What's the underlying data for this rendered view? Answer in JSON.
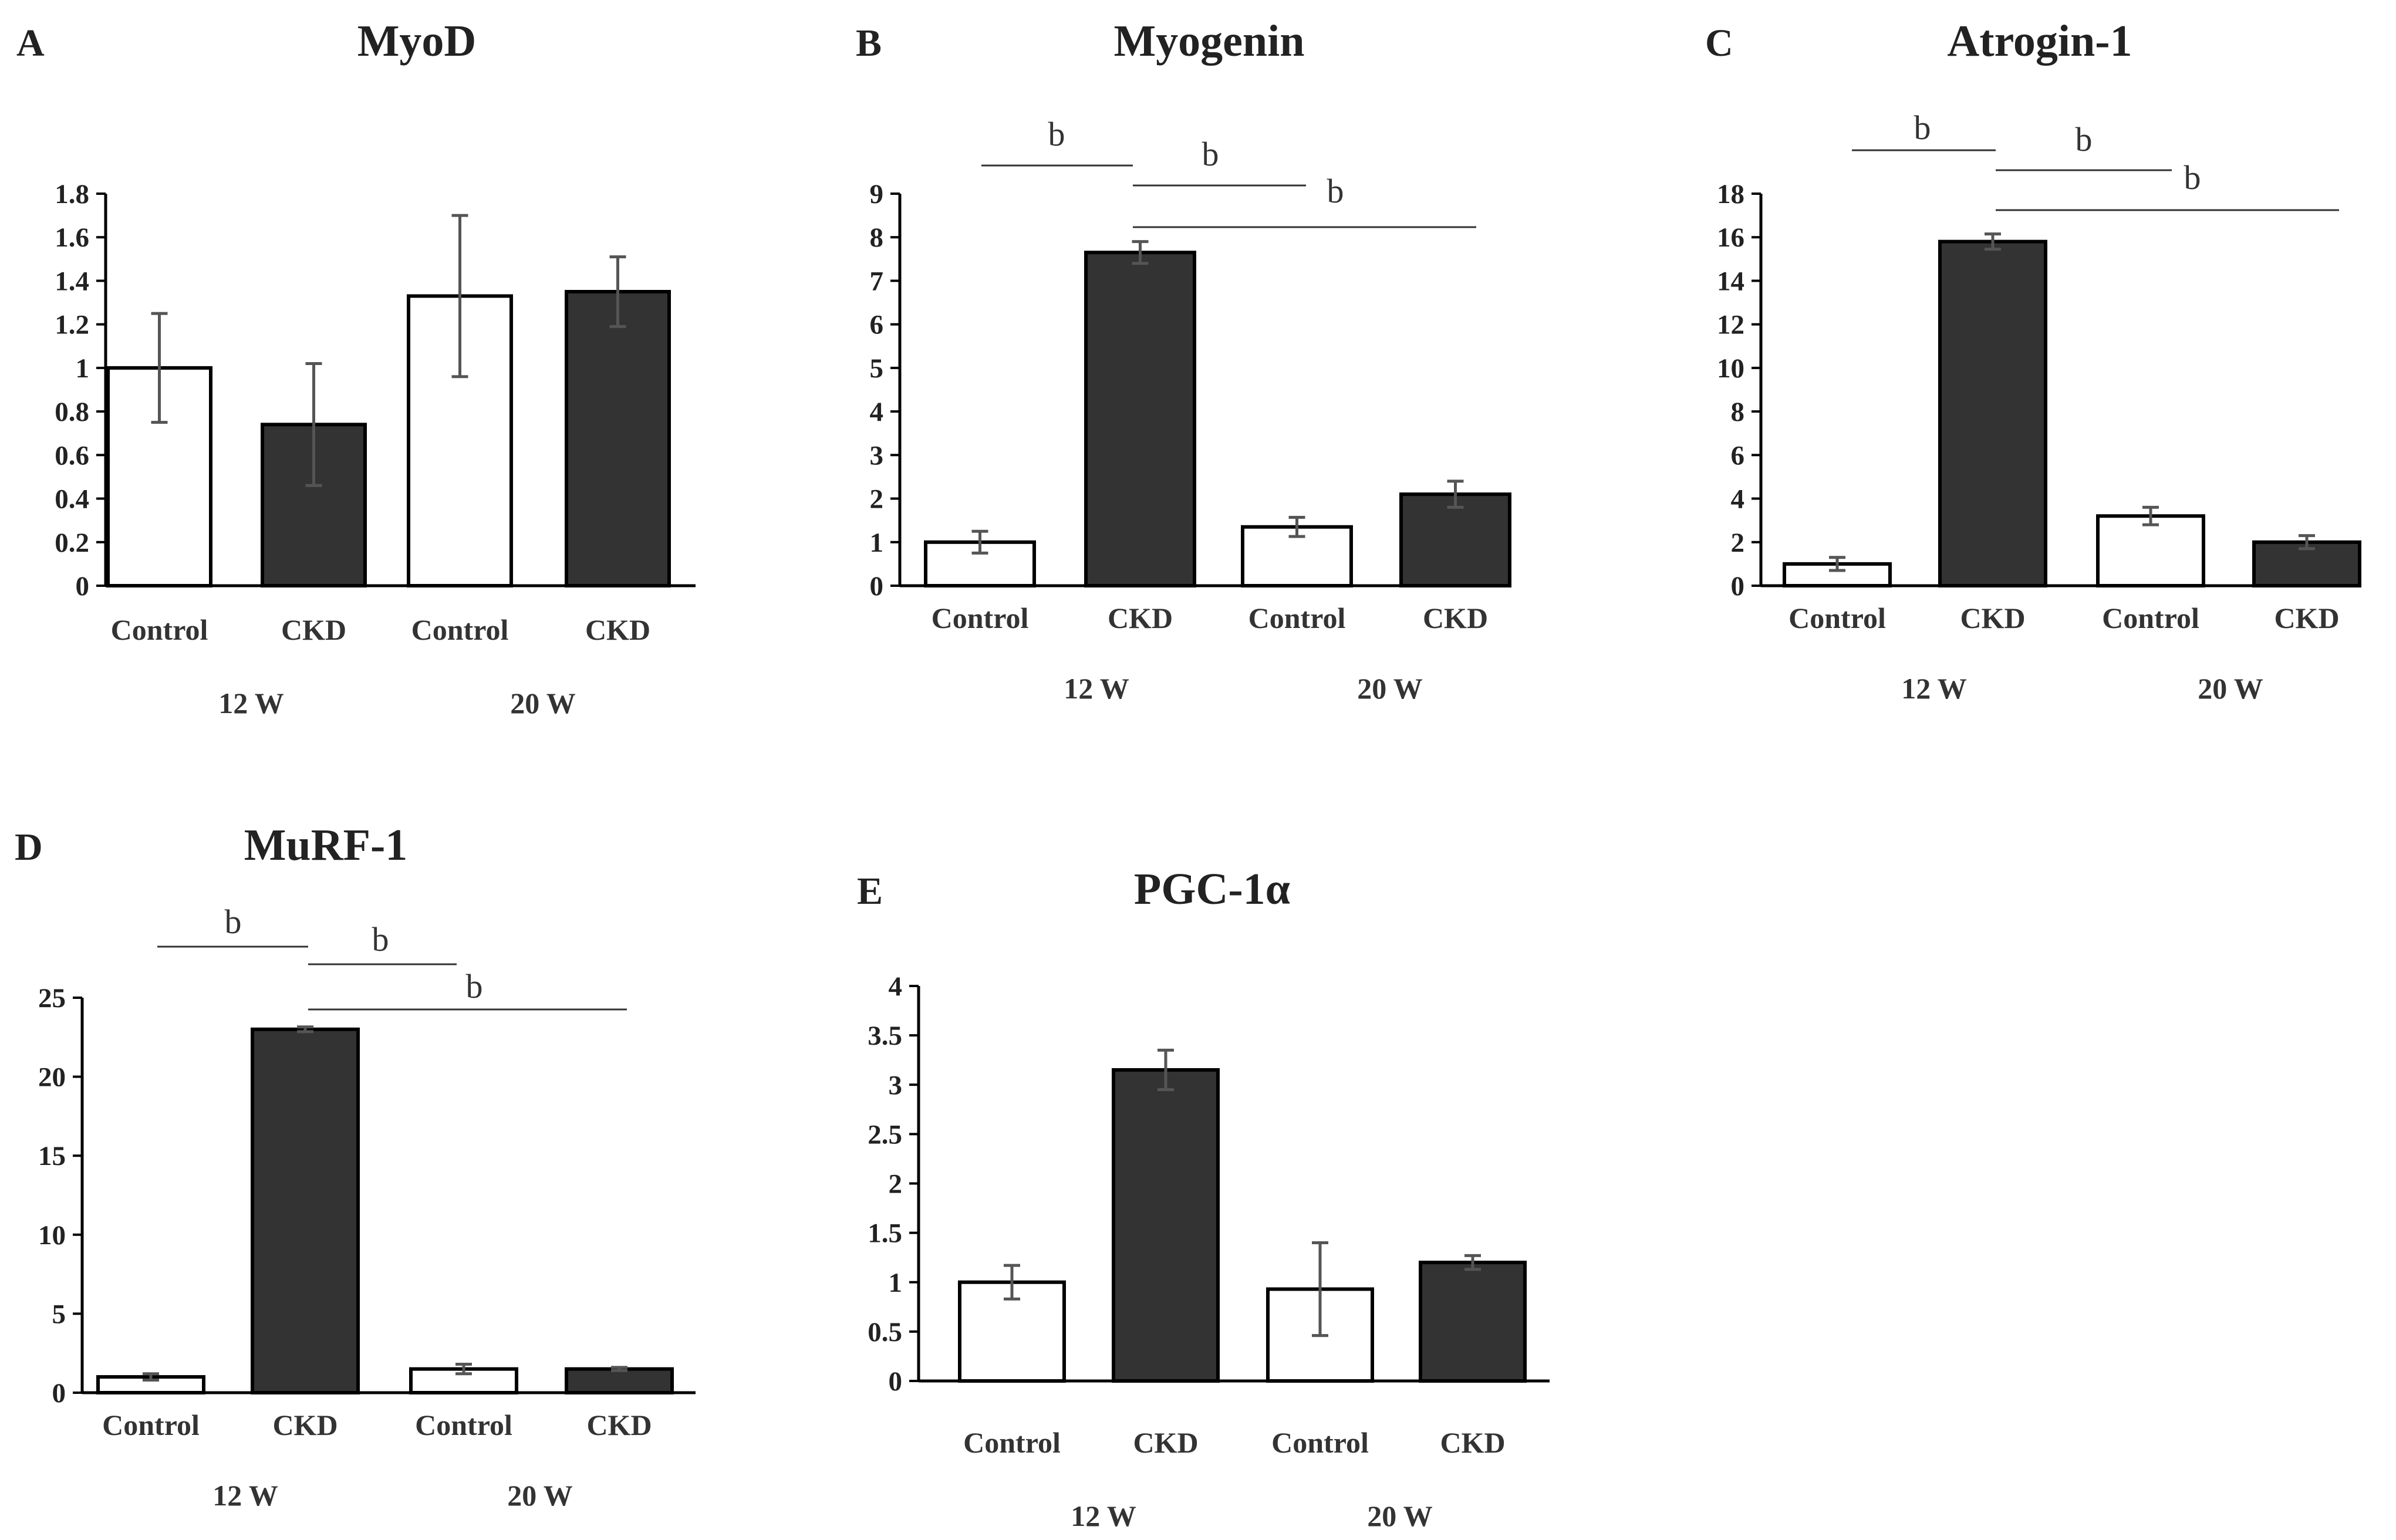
{
  "colors": {
    "control": "#ffffff",
    "ckd": "#333333"
  },
  "chart_data": [
    {
      "panel": "A",
      "title": "MyoD",
      "type": "bar",
      "categories": [
        "Control",
        "CKD",
        "Control",
        "CKD"
      ],
      "groups": [
        "12 W",
        "20 W"
      ],
      "values": [
        1.0,
        0.74,
        1.33,
        1.35
      ],
      "errors": [
        0.25,
        0.28,
        0.37,
        0.16
      ],
      "yticks": [
        "0",
        "0.2",
        "0.4",
        "0.6",
        "0.8",
        "1",
        "1.2",
        "1.4",
        "1.6",
        "1.8"
      ],
      "ylim": [
        0,
        1.8
      ],
      "significance": []
    },
    {
      "panel": "B",
      "title": "Myogenin",
      "type": "bar",
      "categories": [
        "Control",
        "CKD",
        "Control",
        "CKD"
      ],
      "groups": [
        "12 W",
        "20 W"
      ],
      "values": [
        1.0,
        7.65,
        1.35,
        2.1
      ],
      "errors": [
        0.25,
        0.25,
        0.22,
        0.3
      ],
      "yticks": [
        "0",
        "1",
        "2",
        "3",
        "4",
        "5",
        "6",
        "7",
        "8",
        "9"
      ],
      "ylim": [
        0,
        9
      ],
      "significance": [
        {
          "label": "b",
          "from": 0,
          "to": 1
        },
        {
          "label": "b",
          "from": 1,
          "to": 2
        },
        {
          "label": "b",
          "from": 1,
          "to": 3
        }
      ]
    },
    {
      "panel": "C",
      "title": "Atrogin-1",
      "type": "bar",
      "categories": [
        "Control",
        "CKD",
        "Control",
        "CKD"
      ],
      "groups": [
        "12 W",
        "20 W"
      ],
      "values": [
        1.0,
        15.8,
        3.2,
        2.0
      ],
      "errors": [
        0.3,
        0.35,
        0.4,
        0.3
      ],
      "yticks": [
        "0",
        "2",
        "4",
        "6",
        "8",
        "10",
        "12",
        "14",
        "16",
        "18"
      ],
      "ylim": [
        0,
        18
      ],
      "significance": [
        {
          "label": "b",
          "from": 0,
          "to": 1
        },
        {
          "label": "b",
          "from": 1,
          "to": 2
        },
        {
          "label": "b",
          "from": 1,
          "to": 3
        }
      ]
    },
    {
      "panel": "D",
      "title": "MuRF-1",
      "type": "bar",
      "categories": [
        "Control",
        "CKD",
        "Control",
        "CKD"
      ],
      "groups": [
        "12 W",
        "20 W"
      ],
      "values": [
        1.0,
        23.0,
        1.5,
        1.5
      ],
      "errors": [
        0.2,
        0.15,
        0.3,
        0.1
      ],
      "yticks": [
        "0",
        "5",
        "10",
        "15",
        "20",
        "25"
      ],
      "ylim": [
        0,
        25
      ],
      "significance": [
        {
          "label": "b",
          "from": 0,
          "to": 1
        },
        {
          "label": "b",
          "from": 1,
          "to": 2
        },
        {
          "label": "b",
          "from": 1,
          "to": 3
        }
      ]
    },
    {
      "panel": "E",
      "title": "PGC-1α",
      "type": "bar",
      "categories": [
        "Control",
        "CKD",
        "Control",
        "CKD"
      ],
      "groups": [
        "12 W",
        "20 W"
      ],
      "values": [
        1.0,
        3.15,
        0.93,
        1.2
      ],
      "errors": [
        0.17,
        0.2,
        0.47,
        0.07
      ],
      "yticks": [
        "0",
        "0.5",
        "1",
        "1.5",
        "2",
        "2.5",
        "3",
        "3.5",
        "4"
      ],
      "ylim": [
        0,
        4
      ],
      "significance": []
    }
  ]
}
